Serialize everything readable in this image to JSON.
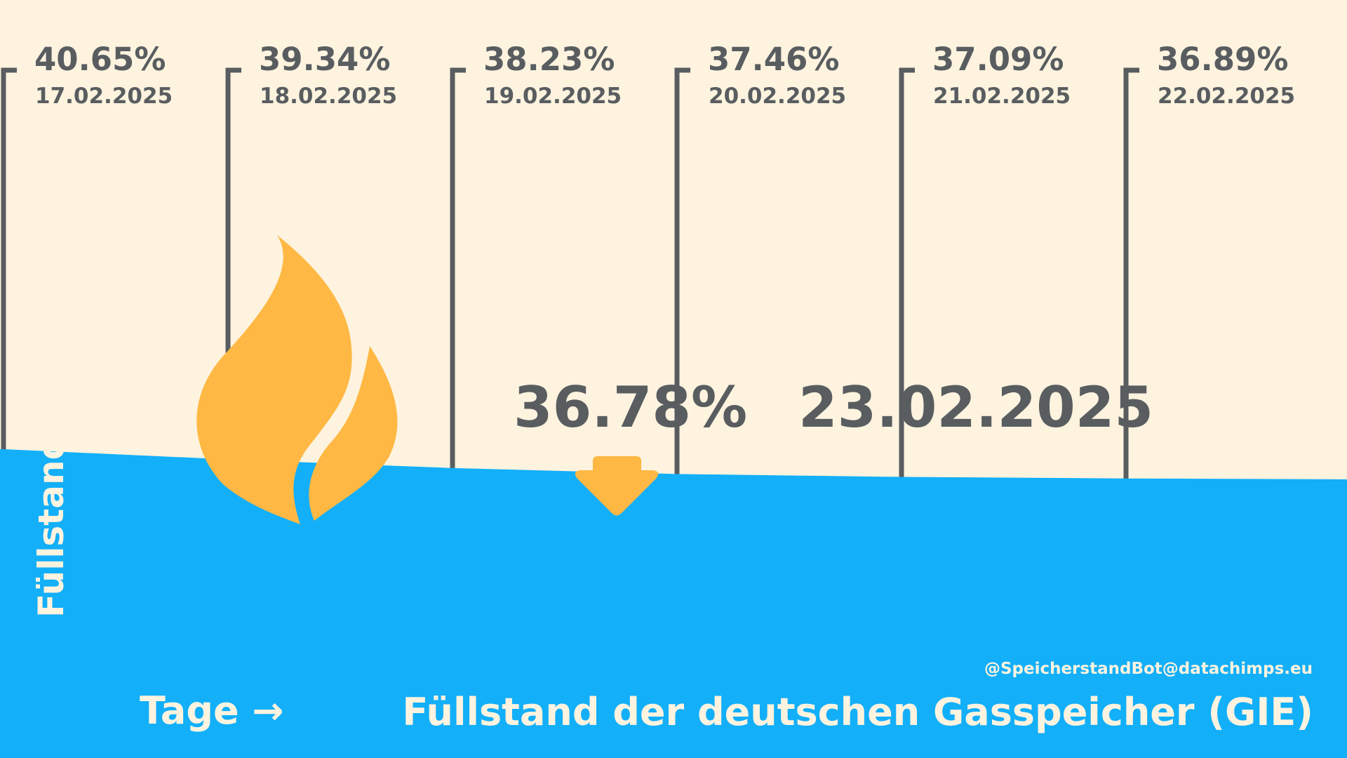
{
  "chart_data": {
    "type": "area",
    "title": "Füllstand der deutschen Gasspeicher (GIE)",
    "xlabel": "Tage →",
    "ylabel": "Füllstand →",
    "credit": "@SpeicherstandBot@datachimps.eu",
    "x": [
      "17.02.2025",
      "18.02.2025",
      "19.02.2025",
      "20.02.2025",
      "21.02.2025",
      "22.02.2025",
      "23.02.2025"
    ],
    "series": [
      {
        "values": [
          40.65,
          39.34,
          38.23,
          37.46,
          37.09,
          36.89,
          36.78
        ]
      }
    ],
    "x_labels": [
      "17.02.2025",
      "18.02.2025",
      "19.02.2025",
      "20.02.2025",
      "21.02.2025",
      "22.02.2025"
    ],
    "value_labels": [
      "40.65%",
      "39.34%",
      "38.23%",
      "37.46%",
      "37.09%",
      "36.89%"
    ],
    "current": {
      "value": "36.78%",
      "date": "23.02.2025",
      "trend": "down"
    },
    "colors": {
      "area": "#13aff9",
      "line": "#595d60",
      "icon": "#ffb843",
      "background": "#fdf3df",
      "text_light": "#fdf3df"
    },
    "icons": {
      "flame": "gas-flame-icon",
      "trend": "arrow-down-icon"
    }
  }
}
